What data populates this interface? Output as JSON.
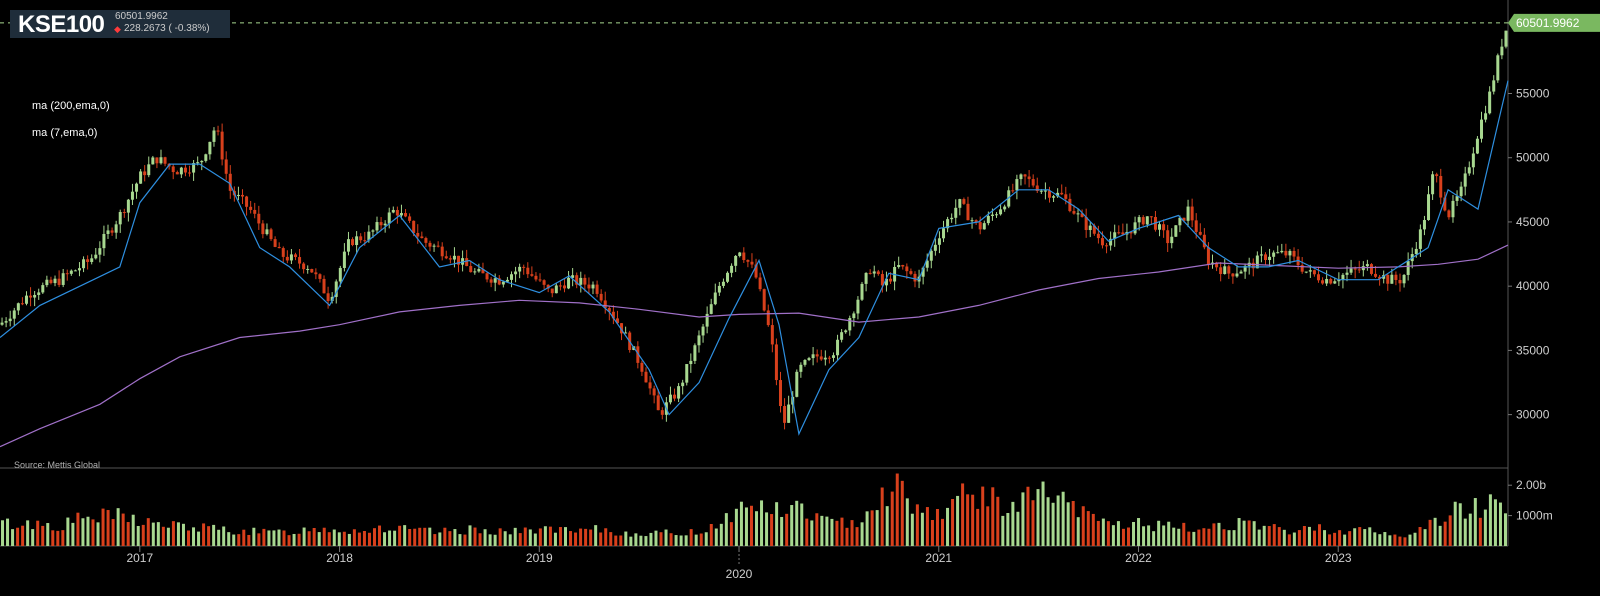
{
  "ticker": {
    "symbol": "KSE100",
    "price": "60501.9962",
    "change": "228.2673 ( -0.38%)",
    "change_direction": "down"
  },
  "indicators": [
    {
      "label": "ma (200,ema,0)",
      "color": "#a070c8"
    },
    {
      "label": "ma (7,ema,0)",
      "color": "#2e8fe0"
    }
  ],
  "source": "Source: Mettis Global",
  "last_price_label": "60501.9962",
  "colors": {
    "up": "#a8d890",
    "down": "#d8401c",
    "ma200": "#a070c8",
    "ma7": "#2e8fe0",
    "last_price_line": "#a8d890",
    "background": "#000000"
  },
  "chart_data": {
    "type": "candlestick",
    "title": "KSE100",
    "x_ticks": [
      "2017",
      "2018",
      "2019",
      "2020",
      "2021",
      "2022",
      "2023"
    ],
    "x_range": [
      2016.3,
      2023.85
    ],
    "y_ticks": [
      "30000",
      "35000",
      "40000",
      "45000",
      "50000",
      "55000"
    ],
    "y_range": [
      26000,
      61500
    ],
    "volume_ticks": [
      "1000m",
      "2.00b"
    ],
    "volume_range": [
      0,
      2.5
    ],
    "grid": false,
    "series": [
      {
        "name": "ma (200,ema,0)",
        "x": [
          2016.3,
          2016.5,
          2016.8,
          2017.0,
          2017.2,
          2017.5,
          2017.8,
          2018.0,
          2018.3,
          2018.6,
          2018.9,
          2019.2,
          2019.5,
          2019.8,
          2020.0,
          2020.3,
          2020.6,
          2020.9,
          2021.2,
          2021.5,
          2021.8,
          2022.1,
          2022.4,
          2022.7,
          2023.0,
          2023.3,
          2023.5,
          2023.7,
          2023.85
        ],
        "values": [
          27500,
          28900,
          30800,
          32800,
          34500,
          36000,
          36500,
          37000,
          38000,
          38500,
          38900,
          38700,
          38200,
          37600,
          37800,
          37900,
          37200,
          37600,
          38500,
          39700,
          40600,
          41100,
          41800,
          41600,
          41400,
          41500,
          41700,
          42100,
          43200
        ]
      },
      {
        "name": "ma (7,ema,0)",
        "x": [
          2016.3,
          2016.5,
          2016.7,
          2016.9,
          2017.0,
          2017.15,
          2017.3,
          2017.45,
          2017.6,
          2017.75,
          2017.95,
          2018.1,
          2018.3,
          2018.5,
          2018.65,
          2018.8,
          2019.0,
          2019.15,
          2019.35,
          2019.55,
          2019.65,
          2019.8,
          2019.95,
          2020.1,
          2020.2,
          2020.3,
          2020.45,
          2020.6,
          2020.75,
          2020.9,
          2021.0,
          2021.2,
          2021.4,
          2021.55,
          2021.7,
          2021.85,
          2022.0,
          2022.2,
          2022.35,
          2022.5,
          2022.65,
          2022.8,
          2023.0,
          2023.2,
          2023.45,
          2023.55,
          2023.7,
          2023.85
        ],
        "values": [
          36000,
          38500,
          40000,
          41500,
          46500,
          49500,
          49500,
          48000,
          43000,
          41500,
          38500,
          43000,
          45500,
          41500,
          42000,
          40500,
          39500,
          40800,
          38000,
          33500,
          30000,
          32500,
          37500,
          42000,
          37000,
          28500,
          33500,
          36000,
          41000,
          40500,
          44500,
          45000,
          47500,
          47500,
          46000,
          43500,
          44500,
          45500,
          43000,
          41500,
          41500,
          42000,
          40500,
          40500,
          43000,
          47500,
          46000,
          56000
        ]
      },
      {
        "name": "price",
        "x": [
          2016.3,
          2016.45,
          2016.6,
          2016.75,
          2016.9,
          2017.0,
          2017.08,
          2017.18,
          2017.3,
          2017.38,
          2017.45,
          2017.55,
          2017.7,
          2017.85,
          2017.95,
          2018.05,
          2018.15,
          2018.28,
          2018.42,
          2018.55,
          2018.68,
          2018.8,
          2018.92,
          2019.05,
          2019.15,
          2019.28,
          2019.4,
          2019.52,
          2019.6,
          2019.7,
          2019.8,
          2019.9,
          2020.0,
          2020.08,
          2020.16,
          2020.22,
          2020.3,
          2020.38,
          2020.48,
          2020.58,
          2020.66,
          2020.72,
          2020.8,
          2020.9,
          2021.0,
          2021.1,
          2021.2,
          2021.3,
          2021.42,
          2021.52,
          2021.62,
          2021.72,
          2021.82,
          2021.92,
          2022.05,
          2022.15,
          2022.25,
          2022.35,
          2022.45,
          2022.55,
          2022.65,
          2022.75,
          2022.85,
          2022.95,
          2023.05,
          2023.15,
          2023.25,
          2023.32,
          2023.42,
          2023.48,
          2023.55,
          2023.62,
          2023.7,
          2023.76,
          2023.82,
          2023.85
        ],
        "values": [
          37000,
          39500,
          40500,
          42000,
          45500,
          48500,
          50000,
          49000,
          49500,
          52500,
          47500,
          46000,
          42500,
          41500,
          39000,
          43500,
          44000,
          46000,
          43500,
          42500,
          41000,
          40500,
          41500,
          39500,
          40500,
          40000,
          37000,
          33500,
          30000,
          32000,
          36000,
          40000,
          43000,
          41000,
          36000,
          29000,
          33500,
          34500,
          35000,
          38500,
          41500,
          40000,
          41500,
          40500,
          44000,
          46500,
          44500,
          46000,
          48500,
          47500,
          47000,
          45000,
          43500,
          44000,
          45500,
          43500,
          46000,
          42000,
          41000,
          41500,
          42500,
          42500,
          41000,
          40500,
          41000,
          41500,
          40500,
          40500,
          44500,
          49000,
          45500,
          47500,
          52000,
          55000,
          59000,
          60502
        ]
      }
    ],
    "volume": {
      "x": [
        2016.3,
        2016.4,
        2016.5,
        2016.6,
        2016.7,
        2016.8,
        2016.9,
        2017.0,
        2017.1,
        2017.2,
        2017.3,
        2017.4,
        2017.5,
        2017.6,
        2017.7,
        2017.8,
        2017.9,
        2018.0,
        2018.1,
        2018.2,
        2018.3,
        2018.4,
        2018.5,
        2018.6,
        2018.7,
        2018.8,
        2018.9,
        2019.0,
        2019.1,
        2019.2,
        2019.3,
        2019.4,
        2019.5,
        2019.6,
        2019.7,
        2019.8,
        2019.9,
        2020.0,
        2020.1,
        2020.2,
        2020.3,
        2020.4,
        2020.5,
        2020.6,
        2020.7,
        2020.8,
        2020.9,
        2021.0,
        2021.1,
        2021.2,
        2021.3,
        2021.4,
        2021.5,
        2021.6,
        2021.7,
        2021.8,
        2021.9,
        2022.0,
        2022.1,
        2022.2,
        2022.3,
        2022.4,
        2022.5,
        2022.6,
        2022.7,
        2022.8,
        2022.9,
        2023.0,
        2023.1,
        2023.2,
        2023.3,
        2023.4,
        2023.5,
        2023.6,
        2023.7,
        2023.8
      ],
      "values": [
        0.75,
        0.7,
        0.75,
        0.65,
        0.9,
        0.95,
        1.0,
        0.85,
        0.7,
        0.65,
        0.6,
        0.55,
        0.5,
        0.45,
        0.45,
        0.5,
        0.6,
        0.55,
        0.5,
        0.6,
        0.55,
        0.5,
        0.45,
        0.5,
        0.55,
        0.5,
        0.45,
        0.6,
        0.5,
        0.45,
        0.55,
        0.4,
        0.45,
        0.4,
        0.45,
        0.45,
        0.8,
        1.2,
        1.4,
        1.1,
        1.3,
        0.9,
        0.7,
        0.9,
        1.6,
        2.0,
        1.2,
        1.1,
        1.6,
        1.7,
        1.4,
        1.3,
        1.9,
        1.5,
        1.1,
        0.9,
        0.7,
        0.75,
        0.65,
        0.6,
        0.55,
        0.7,
        0.75,
        0.6,
        0.55,
        0.5,
        0.6,
        0.5,
        0.55,
        0.45,
        0.3,
        0.5,
        0.85,
        1.2,
        1.3,
        1.45
      ]
    }
  }
}
